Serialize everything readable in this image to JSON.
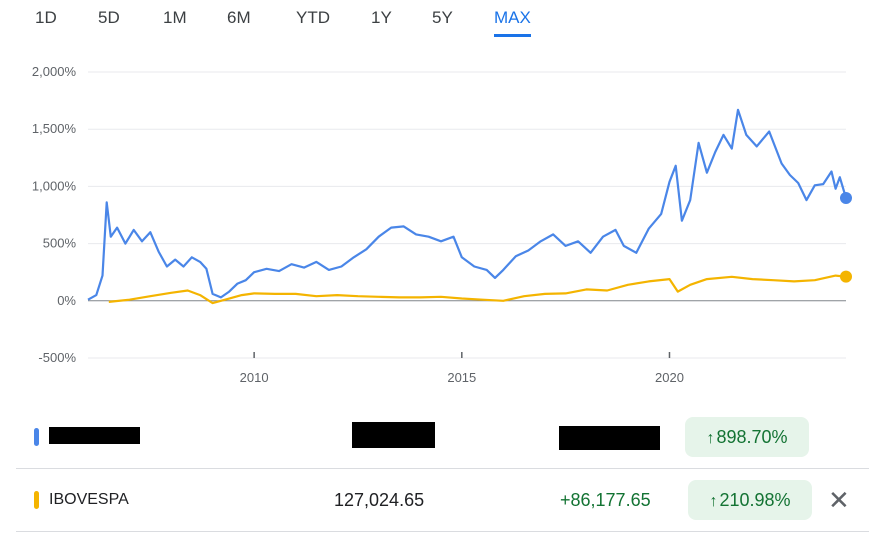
{
  "tabs": [
    {
      "label": "1D",
      "active": false
    },
    {
      "label": "5D",
      "active": false
    },
    {
      "label": "1M",
      "active": false
    },
    {
      "label": "6M",
      "active": false
    },
    {
      "label": "YTD",
      "active": false
    },
    {
      "label": "1Y",
      "active": false
    },
    {
      "label": "5Y",
      "active": false
    },
    {
      "label": "MAX",
      "active": true
    }
  ],
  "colors": {
    "series1": "#4a86e8",
    "series2": "#f4b400",
    "positive": "#137333",
    "positive_bg": "#e6f4ea",
    "accent": "#1a73e8"
  },
  "chart_data": {
    "type": "line",
    "ylim": [
      -500,
      2000
    ],
    "y_ticks": [
      2000,
      1500,
      1000,
      500,
      0,
      -500
    ],
    "y_tick_labels": [
      "2,000%",
      "1,500%",
      "1,000%",
      "500%",
      "0%",
      "-500%"
    ],
    "xlim": [
      2006.0,
      2024.25
    ],
    "x_ticks": [
      2010,
      2015,
      2020
    ],
    "x_tick_labels": [
      "2010",
      "2015",
      "2020"
    ],
    "grid": true,
    "series": [
      {
        "color": "#4a86e8",
        "end_marker": true,
        "points": [
          [
            2006.0,
            10
          ],
          [
            2006.2,
            50
          ],
          [
            2006.35,
            220
          ],
          [
            2006.45,
            860
          ],
          [
            2006.55,
            560
          ],
          [
            2006.7,
            640
          ],
          [
            2006.9,
            500
          ],
          [
            2007.1,
            620
          ],
          [
            2007.3,
            520
          ],
          [
            2007.5,
            600
          ],
          [
            2007.7,
            430
          ],
          [
            2007.9,
            300
          ],
          [
            2008.1,
            360
          ],
          [
            2008.3,
            300
          ],
          [
            2008.5,
            380
          ],
          [
            2008.7,
            340
          ],
          [
            2008.85,
            280
          ],
          [
            2009.0,
            60
          ],
          [
            2009.2,
            30
          ],
          [
            2009.4,
            80
          ],
          [
            2009.6,
            150
          ],
          [
            2009.8,
            180
          ],
          [
            2010.0,
            250
          ],
          [
            2010.3,
            280
          ],
          [
            2010.6,
            260
          ],
          [
            2010.9,
            320
          ],
          [
            2011.2,
            290
          ],
          [
            2011.5,
            340
          ],
          [
            2011.8,
            270
          ],
          [
            2012.1,
            300
          ],
          [
            2012.4,
            380
          ],
          [
            2012.7,
            450
          ],
          [
            2013.0,
            560
          ],
          [
            2013.3,
            640
          ],
          [
            2013.6,
            650
          ],
          [
            2013.9,
            580
          ],
          [
            2014.2,
            560
          ],
          [
            2014.5,
            520
          ],
          [
            2014.8,
            560
          ],
          [
            2015.0,
            380
          ],
          [
            2015.3,
            300
          ],
          [
            2015.6,
            270
          ],
          [
            2015.8,
            200
          ],
          [
            2016.0,
            270
          ],
          [
            2016.3,
            390
          ],
          [
            2016.6,
            440
          ],
          [
            2016.9,
            520
          ],
          [
            2017.2,
            580
          ],
          [
            2017.5,
            480
          ],
          [
            2017.8,
            520
          ],
          [
            2018.1,
            420
          ],
          [
            2018.4,
            560
          ],
          [
            2018.7,
            620
          ],
          [
            2018.9,
            480
          ],
          [
            2019.2,
            420
          ],
          [
            2019.5,
            630
          ],
          [
            2019.8,
            760
          ],
          [
            2020.0,
            1040
          ],
          [
            2020.15,
            1180
          ],
          [
            2020.3,
            700
          ],
          [
            2020.5,
            880
          ],
          [
            2020.7,
            1380
          ],
          [
            2020.9,
            1120
          ],
          [
            2021.1,
            1300
          ],
          [
            2021.3,
            1450
          ],
          [
            2021.5,
            1330
          ],
          [
            2021.65,
            1670
          ],
          [
            2021.85,
            1450
          ],
          [
            2022.1,
            1350
          ],
          [
            2022.4,
            1480
          ],
          [
            2022.7,
            1200
          ],
          [
            2022.9,
            1100
          ],
          [
            2023.1,
            1030
          ],
          [
            2023.3,
            880
          ],
          [
            2023.5,
            1010
          ],
          [
            2023.7,
            1020
          ],
          [
            2023.9,
            1130
          ],
          [
            2024.0,
            980
          ],
          [
            2024.1,
            1080
          ],
          [
            2024.25,
            898.7
          ]
        ]
      },
      {
        "color": "#f4b400",
        "end_marker": true,
        "points": [
          [
            2006.5,
            -10
          ],
          [
            2007.0,
            10
          ],
          [
            2007.5,
            40
          ],
          [
            2008.0,
            70
          ],
          [
            2008.4,
            90
          ],
          [
            2008.7,
            50
          ],
          [
            2009.0,
            -20
          ],
          [
            2009.3,
            10
          ],
          [
            2009.7,
            50
          ],
          [
            2010.0,
            65
          ],
          [
            2010.5,
            60
          ],
          [
            2011.0,
            60
          ],
          [
            2011.5,
            40
          ],
          [
            2012.0,
            50
          ],
          [
            2012.5,
            40
          ],
          [
            2013.0,
            35
          ],
          [
            2013.5,
            30
          ],
          [
            2014.0,
            30
          ],
          [
            2014.5,
            35
          ],
          [
            2015.0,
            20
          ],
          [
            2015.5,
            10
          ],
          [
            2016.0,
            0
          ],
          [
            2016.5,
            40
          ],
          [
            2017.0,
            60
          ],
          [
            2017.5,
            65
          ],
          [
            2018.0,
            100
          ],
          [
            2018.5,
            90
          ],
          [
            2019.0,
            140
          ],
          [
            2019.5,
            170
          ],
          [
            2020.0,
            190
          ],
          [
            2020.2,
            80
          ],
          [
            2020.5,
            140
          ],
          [
            2020.9,
            190
          ],
          [
            2021.5,
            210
          ],
          [
            2022.0,
            190
          ],
          [
            2022.5,
            180
          ],
          [
            2023.0,
            170
          ],
          [
            2023.5,
            180
          ],
          [
            2024.0,
            220
          ],
          [
            2024.25,
            210.98
          ]
        ]
      }
    ]
  },
  "rows": [
    {
      "name": "",
      "price": "",
      "change": "",
      "percent": "898.70%",
      "color": "#4a86e8",
      "redacted": true
    },
    {
      "name": "IBOVESPA",
      "price": "127,024.65",
      "change": "+86,177.65",
      "percent": "210.98%",
      "color": "#f4b400",
      "redacted": false
    }
  ],
  "icons": {
    "up_arrow": "↑",
    "close": "✕"
  }
}
